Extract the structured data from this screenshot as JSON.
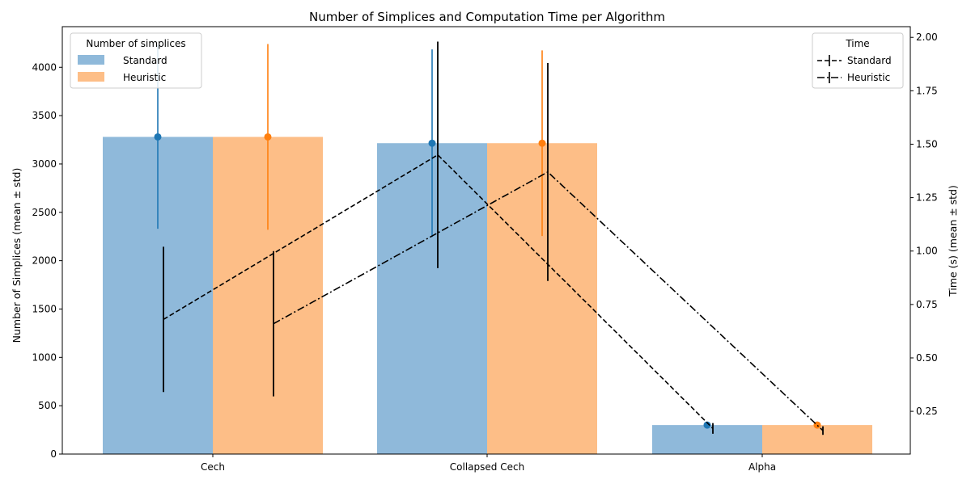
{
  "chart_data": {
    "type": "bar",
    "title": "Number of Simplices and Computation Time per Algorithm",
    "categories": [
      "Cech",
      "Collapsed Cech",
      "Alpha"
    ],
    "ylabel_left": "Number of Simplices (mean ± std)",
    "ylabel_right": "Time (s) (mean ± std)",
    "ylim_left": [
      0,
      4420
    ],
    "ylim_right": [
      0.05,
      2.05
    ],
    "yticks_left": [
      "0",
      "500",
      "1000",
      "1500",
      "2000",
      "2500",
      "3000",
      "3500",
      "4000"
    ],
    "yticks_right": [
      "0.25",
      "0.50",
      "0.75",
      "1.00",
      "1.25",
      "1.50",
      "1.75",
      "2.00"
    ],
    "grid": false,
    "bar_series": [
      {
        "name": "Standard",
        "color": "#1f77b4",
        "values": [
          3280,
          3215,
          300
        ],
        "std": [
          950,
          970,
          18
        ]
      },
      {
        "name": "Heuristic",
        "color": "#ff7f0e",
        "values": [
          3280,
          3215,
          300
        ],
        "std": [
          960,
          960,
          18
        ]
      }
    ],
    "time_series": [
      {
        "name": "Standard",
        "linestyle": "dashed",
        "values": [
          0.68,
          1.45,
          0.17
        ],
        "std": [
          0.34,
          0.53,
          0.025
        ]
      },
      {
        "name": "Heuristic",
        "linestyle": "dashdot",
        "values": [
          0.66,
          1.37,
          0.16
        ],
        "std": [
          0.34,
          0.51,
          0.02
        ]
      }
    ],
    "legend_left": {
      "title": "Number of simplices",
      "placement": "upper-left",
      "items": [
        "Standard",
        "Heuristic"
      ]
    },
    "legend_right": {
      "title": "Time",
      "placement": "upper-right",
      "items": [
        "Standard",
        "Heuristic"
      ]
    }
  }
}
